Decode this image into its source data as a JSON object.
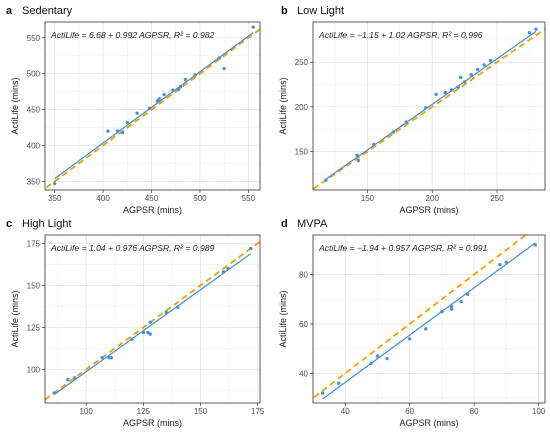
{
  "chart_data": [
    {
      "type": "scatter",
      "letter": "a",
      "title": "Sedentary",
      "xlabel": "AGPSR (mins)",
      "ylabel": "ActiLife (mins)",
      "equation": "ActiLife = 6.68 + 0.992 AGPSR, R² = 0.982",
      "xlim": [
        340,
        562
      ],
      "ylim": [
        338,
        572
      ],
      "xticks": [
        350,
        400,
        450,
        500,
        550
      ],
      "yticks": [
        350,
        400,
        450,
        500,
        550
      ],
      "fit": {
        "intercept": 6.68,
        "slope": 0.992
      },
      "points": [
        [
          350,
          347
        ],
        [
          405,
          420
        ],
        [
          415,
          420
        ],
        [
          420,
          418
        ],
        [
          425,
          432
        ],
        [
          435,
          445
        ],
        [
          448,
          452
        ],
        [
          456,
          462
        ],
        [
          458,
          465
        ],
        [
          463,
          471
        ],
        [
          472,
          477
        ],
        [
          478,
          478
        ],
        [
          480,
          482
        ],
        [
          485,
          492
        ],
        [
          495,
          498
        ],
        [
          520,
          522
        ],
        [
          525,
          507
        ],
        [
          555,
          565
        ]
      ],
      "line_color": "#3a8fd9",
      "identity_color": "#f0a000",
      "point_color": "#4a90d9",
      "grid": true
    },
    {
      "type": "scatter",
      "letter": "b",
      "title": "Low Light",
      "xlabel": "AGPSR (mins)",
      "ylabel": "ActiLife (mins)",
      "equation": "ActiLife = −1.15 + 1.02 AGPSR, R² = 0.996",
      "xlim": [
        108,
        287
      ],
      "ylim": [
        107,
        295
      ],
      "xticks": [
        150,
        200,
        250
      ],
      "yticks": [
        150,
        200,
        250
      ],
      "fit": {
        "intercept": -1.15,
        "slope": 1.02
      },
      "points": [
        [
          118,
          118
        ],
        [
          142,
          146
        ],
        [
          143,
          140
        ],
        [
          155,
          158
        ],
        [
          170,
          172
        ],
        [
          180,
          183
        ],
        [
          195,
          199
        ],
        [
          203,
          214
        ],
        [
          210,
          216
        ],
        [
          215,
          219
        ],
        [
          220,
          222
        ],
        [
          222,
          233
        ],
        [
          225,
          228
        ],
        [
          230,
          236
        ],
        [
          235,
          242
        ],
        [
          240,
          247
        ],
        [
          245,
          252
        ],
        [
          275,
          283
        ],
        [
          280,
          287
        ]
      ],
      "line_color": "#3a8fd9",
      "identity_color": "#f0a000",
      "point_color": "#4a90d9",
      "grid": true
    },
    {
      "type": "scatter",
      "letter": "c",
      "title": "High Light",
      "xlabel": "AGPSR (mins)",
      "ylabel": "ActiLife (mins)",
      "equation": "ActiLife = 1.04 + 0.976 AGPSR, R² = 0.989",
      "xlim": [
        82,
        176
      ],
      "ylim": [
        80,
        180
      ],
      "xticks": [
        100,
        125,
        150,
        175
      ],
      "yticks": [
        100,
        125,
        150,
        175
      ],
      "fit": {
        "intercept": 1.04,
        "slope": 0.976
      },
      "points": [
        [
          86,
          86
        ],
        [
          92,
          94
        ],
        [
          95,
          95
        ],
        [
          107,
          107
        ],
        [
          110,
          107
        ],
        [
          111,
          107
        ],
        [
          120,
          118
        ],
        [
          125,
          122
        ],
        [
          127,
          122
        ],
        [
          128,
          121
        ],
        [
          128,
          128
        ],
        [
          135,
          134
        ],
        [
          140,
          137
        ],
        [
          160,
          158
        ],
        [
          162,
          160
        ],
        [
          172,
          172
        ]
      ],
      "line_color": "#3a8fd9",
      "identity_color": "#f0a000",
      "point_color": "#4a90d9",
      "grid": true
    },
    {
      "type": "scatter",
      "letter": "d",
      "title": "MVPA",
      "xlabel": "AGPSR (mins)",
      "ylabel": "ActiLife (mins)",
      "equation": "ActiLife = −1.94 + 0.957 AGPSR, R² = 0.991",
      "xlim": [
        30,
        102
      ],
      "ylim": [
        28,
        96
      ],
      "xticks": [
        40,
        60,
        80,
        100
      ],
      "yticks": [
        40,
        60,
        80
      ],
      "fit": {
        "intercept": -1.94,
        "slope": 0.957
      },
      "points": [
        [
          33,
          32
        ],
        [
          38,
          36
        ],
        [
          48,
          44
        ],
        [
          50,
          47
        ],
        [
          53,
          46
        ],
        [
          60,
          54
        ],
        [
          65,
          58
        ],
        [
          70,
          65
        ],
        [
          73,
          66
        ],
        [
          73,
          67
        ],
        [
          76,
          69
        ],
        [
          78,
          72
        ],
        [
          88,
          84
        ],
        [
          90,
          85
        ],
        [
          99,
          92
        ]
      ],
      "line_color": "#3a8fd9",
      "identity_color": "#f0a000",
      "point_color": "#4a90d9",
      "grid": true
    }
  ]
}
